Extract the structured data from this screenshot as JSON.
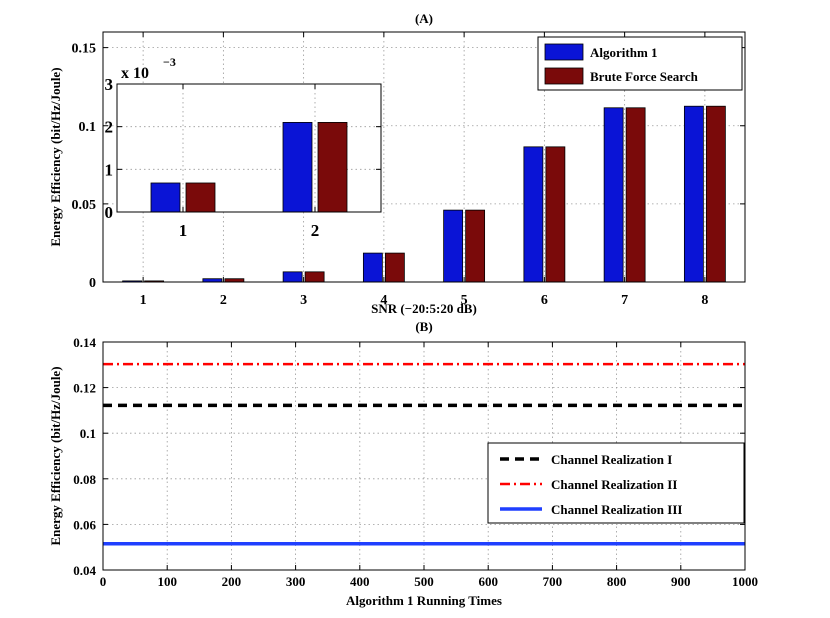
{
  "chart_data": [
    {
      "type": "bar",
      "title": "(A)",
      "xlabel": "SNR (−20:5:20 dB)",
      "ylabel": "Energy Efficiency (bit/Hz/Joule)",
      "ylim": [
        0,
        0.16
      ],
      "yticks": [
        0,
        0.05,
        0.1,
        0.15
      ],
      "ytick_labels": [
        "0",
        "0.05",
        "0.1",
        "0.15"
      ],
      "categories": [
        "1",
        "2",
        "3",
        "4",
        "5",
        "6",
        "7",
        "8"
      ],
      "grid": true,
      "legend_position": "top-right",
      "series": [
        {
          "name": "Algorithm 1",
          "color": "#0a14d6",
          "values": [
            0.0007,
            0.0021,
            0.0065,
            0.0185,
            0.046,
            0.0865,
            0.1115,
            0.1125
          ]
        },
        {
          "name": "Brute Force Search",
          "color": "#7a0a0a",
          "values": [
            0.0007,
            0.0021,
            0.0065,
            0.0185,
            0.046,
            0.0865,
            0.1115,
            0.1125
          ]
        }
      ],
      "inset": {
        "scale_label": "x 10",
        "scale_exponent": "−3",
        "ylim": [
          0,
          3
        ],
        "yticks": [
          "0",
          "1",
          "2",
          "3"
        ],
        "categories": [
          "1",
          "2"
        ],
        "series": [
          {
            "name": "Algorithm 1",
            "values": [
              0.68,
              2.1
            ]
          },
          {
            "name": "Brute Force Search",
            "values": [
              0.68,
              2.1
            ]
          }
        ]
      }
    },
    {
      "type": "line",
      "title": "(B)",
      "xlabel": "Algorithm 1 Running Times",
      "ylabel": "Energy Efficiency (bit/Hz/Joule)",
      "xlim": [
        0,
        1000
      ],
      "ylim": [
        0.04,
        0.14
      ],
      "xticks": [
        "0",
        "100",
        "200",
        "300",
        "400",
        "500",
        "600",
        "700",
        "800",
        "900",
        "1000"
      ],
      "yticks": [
        "0.04",
        "0.06",
        "0.08",
        "0.1",
        "0.12",
        "0.14"
      ],
      "ytick_values": [
        0.04,
        0.06,
        0.08,
        0.1,
        0.12,
        0.14
      ],
      "grid": true,
      "legend_position": "right",
      "series": [
        {
          "name": "Channel Realization I",
          "color": "#000000",
          "style": "dashed",
          "x": [
            0,
            1000
          ],
          "y": [
            0.1122,
            0.1122
          ]
        },
        {
          "name": "Channel Realization II",
          "color": "#ff0000",
          "style": "dashdot",
          "x": [
            0,
            1000
          ],
          "y": [
            0.1303,
            0.1303
          ]
        },
        {
          "name": "Channel Realization III",
          "color": "#1f3fff",
          "style": "solid",
          "x": [
            0,
            1000
          ],
          "y": [
            0.0515,
            0.0515
          ]
        }
      ]
    }
  ]
}
